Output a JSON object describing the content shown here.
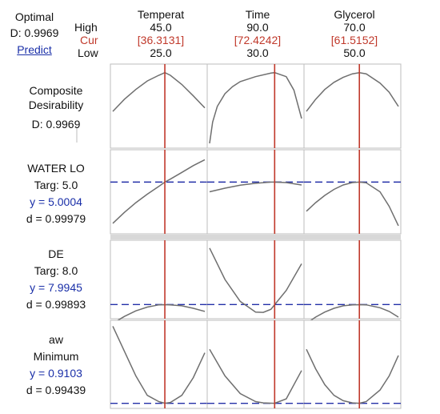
{
  "optimal": {
    "label": "Optimal",
    "d_line": "D: 0.9969",
    "predict_label": "Predict"
  },
  "row_headers": {
    "high": "High",
    "cur": "Cur",
    "low": "Low"
  },
  "factors": [
    {
      "name": "Temperat",
      "high": "45.0",
      "cur": "[36.3131]",
      "low": "25.0",
      "high_value": 45.0,
      "cur_value": 36.3131,
      "low_value": 25.0
    },
    {
      "name": "Time",
      "high": "90.0",
      "cur": "[72.4242]",
      "low": "30.0",
      "high_value": 90.0,
      "cur_value": 72.4242,
      "low_value": 30.0
    },
    {
      "name": "Glycerol",
      "high": "70.0",
      "cur": "[61.5152]",
      "low": "50.0",
      "high_value": 70.0,
      "cur_value": 61.5152,
      "low_value": 50.0
    }
  ],
  "responses": [
    {
      "lines": [
        "Composite",
        "Desirability",
        "D: 0.9969"
      ],
      "line_colors": [
        "",
        "",
        ""
      ]
    },
    {
      "lines": [
        "WATER LO",
        "Targ: 5.0",
        "y = 5.0004",
        "d = 0.99979"
      ],
      "line_colors": [
        "",
        "",
        "blue",
        ""
      ]
    },
    {
      "lines": [
        "DE",
        "Targ: 8.0",
        "y = 7.9945",
        "d = 0.99893"
      ],
      "line_colors": [
        "",
        "",
        "blue",
        ""
      ]
    },
    {
      "lines": [
        "aw",
        "Minimum",
        "y = 0.9103",
        "d = 0.99439"
      ],
      "line_colors": [
        "",
        "",
        "blue",
        ""
      ]
    }
  ],
  "colors": {
    "current_line": "#c0392b",
    "target_line": "#2430a8",
    "curve": "#6f6f6f",
    "grid": "#bdbdbd"
  },
  "chart_data": {
    "type": "line",
    "title": "",
    "composite_desirability": 0.9969,
    "factors": [
      "Temperat",
      "Time",
      "Glycerol"
    ],
    "factor_ranges": [
      [
        25.0,
        45.0
      ],
      [
        30.0,
        90.0
      ],
      [
        50.0,
        70.0
      ]
    ],
    "current_settings": [
      36.3131,
      72.4242,
      61.5152
    ],
    "rows": [
      {
        "response": "Composite Desirability",
        "has_target_line": false,
        "series": [
          {
            "x": [
              25,
              27.5,
              30,
              32.5,
              35,
              36.3131,
              37.5,
              40,
              42.5,
              45
            ],
            "y": [
              0.45,
              0.62,
              0.76,
              0.88,
              0.96,
              0.9969,
              0.96,
              0.83,
              0.67,
              0.5
            ]
          },
          {
            "x": [
              30,
              32,
              35,
              40,
              45,
              50,
              60,
              70,
              72.4242,
              80,
              85,
              90
            ],
            "y": [
              0.0,
              0.3,
              0.52,
              0.7,
              0.8,
              0.87,
              0.94,
              0.99,
              0.9969,
              0.94,
              0.75,
              0.35
            ]
          },
          {
            "x": [
              50,
              52,
              54,
              56,
              58,
              60,
              61.5152,
              63,
              66,
              68,
              70
            ],
            "y": [
              0.45,
              0.62,
              0.76,
              0.86,
              0.93,
              0.98,
              0.9969,
              0.98,
              0.85,
              0.72,
              0.52
            ]
          }
        ]
      },
      {
        "response": "WATER LO",
        "target": 5.0,
        "has_target_line": true,
        "series": [
          {
            "x": [
              25,
              27.5,
              30,
              32.5,
              35,
              36.3131,
              37.5,
              40,
              42.5,
              45
            ],
            "y": [
              3.3,
              3.75,
              4.15,
              4.5,
              4.82,
              5.0004,
              5.12,
              5.4,
              5.68,
              5.92
            ]
          },
          {
            "x": [
              30,
              40,
              50,
              60,
              70,
              72.4242,
              80,
              90
            ],
            "y": [
              4.6,
              4.75,
              4.87,
              4.95,
              4.998,
              5.0004,
              4.98,
              4.88
            ]
          },
          {
            "x": [
              50,
              52,
              54,
              56,
              58,
              60,
              61.5152,
              63,
              66,
              68,
              70
            ],
            "y": [
              3.8,
              4.15,
              4.45,
              4.7,
              4.88,
              4.98,
              5.0004,
              4.97,
              4.6,
              4.0,
              3.2
            ]
          }
        ]
      },
      {
        "response": "DE",
        "target": 8.0,
        "has_target_line": true,
        "series": [
          {
            "x": [
              25,
              27.5,
              30,
              32.5,
              35,
              36.3131,
              37.5,
              40,
              42.5,
              45
            ],
            "y": [
              7.4,
              7.62,
              7.8,
              7.92,
              7.99,
              7.9945,
              7.99,
              7.96,
              7.88,
              7.78
            ]
          },
          {
            "x": [
              30,
              40,
              50,
              60,
              65,
              70,
              72.4242,
              80,
              90
            ],
            "y": [
              9.8,
              8.8,
              8.1,
              7.76,
              7.75,
              7.85,
              7.9945,
              8.45,
              9.3
            ]
          },
          {
            "x": [
              50,
              52,
              54,
              56,
              58,
              60,
              61.5152,
              63,
              66,
              68,
              70
            ],
            "y": [
              7.4,
              7.6,
              7.76,
              7.88,
              7.96,
              7.99,
              7.9945,
              7.99,
              7.9,
              7.78,
              7.6
            ]
          }
        ]
      },
      {
        "response": "aw",
        "goal": "Minimum",
        "has_target_line": true,
        "series": [
          {
            "x": [
              25,
              27.5,
              30,
              32.5,
              35,
              36.3131,
              37.5,
              40,
              42.5,
              45
            ],
            "y": [
              1.78,
              1.5,
              1.22,
              1.0,
              0.93,
              0.9103,
              0.92,
              1.0,
              1.2,
              1.48
            ]
          },
          {
            "x": [
              30,
              40,
              50,
              60,
              65,
              70,
              72.4242,
              80,
              90
            ],
            "y": [
              1.52,
              1.22,
              1.02,
              0.93,
              0.915,
              0.912,
              0.9103,
              0.96,
              1.28
            ]
          },
          {
            "x": [
              50,
              52,
              54,
              56,
              58,
              60,
              61.5152,
              63,
              66,
              68,
              70
            ],
            "y": [
              1.52,
              1.3,
              1.12,
              1.0,
              0.94,
              0.915,
              0.9103,
              0.93,
              1.06,
              1.22,
              1.45
            ]
          }
        ]
      }
    ]
  }
}
